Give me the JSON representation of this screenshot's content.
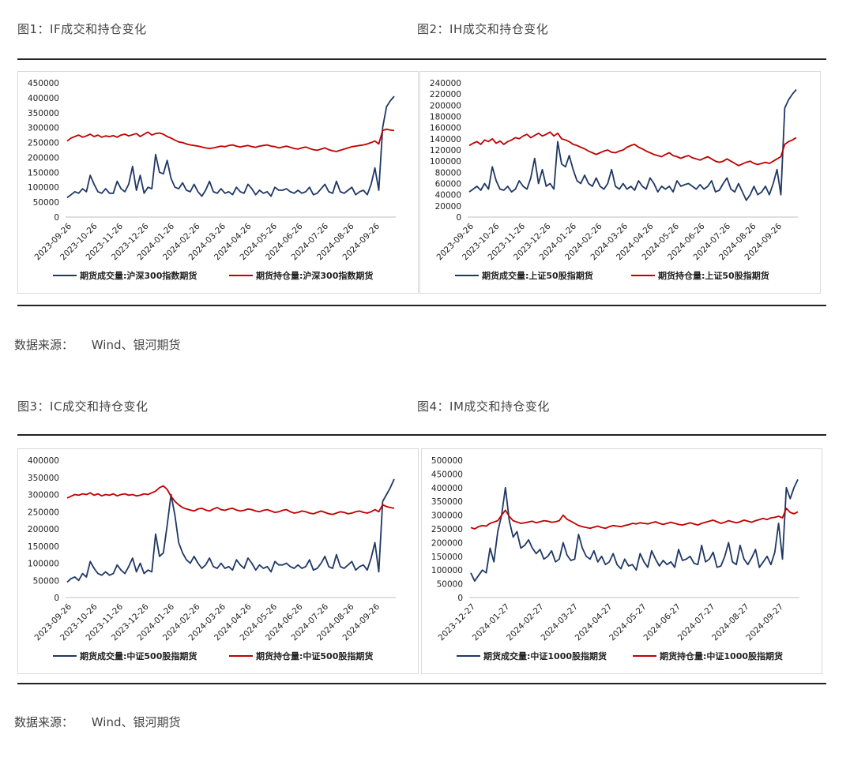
{
  "titles": {
    "fig1": "图1：IF成交和持仓变化",
    "fig2": "图2：IH成交和持仓变化",
    "fig3": "图3：IC成交和持仓变化",
    "fig4": "图4：IM成交和持仓变化"
  },
  "source": {
    "label": "数据来源：",
    "value": "Wind、银河期货"
  },
  "colors": {
    "volume": "#1f3864",
    "oi": "#c00000"
  },
  "chart_data": [
    {
      "id": "fig1",
      "type": "line",
      "title": "",
      "y_ticks": [
        0,
        50000,
        100000,
        150000,
        200000,
        250000,
        300000,
        350000,
        400000,
        450000
      ],
      "ylim": [
        0,
        450000
      ],
      "x_ticks": [
        "2023-09-26",
        "2023-10-26",
        "2023-11-26",
        "2023-12-26",
        "2024-01-26",
        "2024-02-26",
        "2024-03-26",
        "2024-04-26",
        "2024-05-26",
        "2024-06-26",
        "2024-07-26",
        "2024-08-26",
        "2024-09-26"
      ],
      "series": [
        {
          "name": "期货成交量:沪深300指数期货",
          "color": "#1f3864",
          "values": [
            65000,
            75000,
            85000,
            80000,
            95000,
            85000,
            140000,
            110000,
            85000,
            80000,
            95000,
            80000,
            80000,
            120000,
            95000,
            85000,
            110000,
            170000,
            90000,
            140000,
            80000,
            100000,
            95000,
            210000,
            150000,
            145000,
            190000,
            130000,
            100000,
            95000,
            115000,
            90000,
            85000,
            110000,
            85000,
            70000,
            90000,
            120000,
            85000,
            80000,
            95000,
            80000,
            85000,
            75000,
            100000,
            85000,
            80000,
            110000,
            95000,
            75000,
            90000,
            80000,
            85000,
            70000,
            100000,
            90000,
            90000,
            95000,
            85000,
            80000,
            90000,
            80000,
            85000,
            100000,
            75000,
            80000,
            95000,
            110000,
            85000,
            80000,
            120000,
            85000,
            80000,
            90000,
            100000,
            75000,
            85000,
            90000,
            75000,
            110000,
            165000,
            90000,
            300000,
            370000,
            390000,
            405000
          ]
        },
        {
          "name": "期货持仓量:沪深300指数期货",
          "color": "#c00000",
          "values": [
            255000,
            265000,
            270000,
            275000,
            268000,
            272000,
            278000,
            270000,
            275000,
            268000,
            272000,
            270000,
            273000,
            268000,
            275000,
            278000,
            272000,
            276000,
            280000,
            270000,
            278000,
            285000,
            275000,
            280000,
            282000,
            278000,
            270000,
            265000,
            258000,
            252000,
            250000,
            245000,
            242000,
            240000,
            238000,
            235000,
            232000,
            230000,
            232000,
            235000,
            238000,
            236000,
            240000,
            242000,
            238000,
            235000,
            238000,
            240000,
            236000,
            234000,
            238000,
            240000,
            242000,
            238000,
            236000,
            232000,
            235000,
            238000,
            234000,
            230000,
            228000,
            232000,
            235000,
            230000,
            226000,
            224000,
            228000,
            232000,
            226000,
            222000,
            220000,
            224000,
            228000,
            232000,
            236000,
            238000,
            240000,
            242000,
            245000,
            250000,
            255000,
            245000,
            290000,
            295000,
            292000,
            290000
          ]
        }
      ]
    },
    {
      "id": "fig2",
      "type": "line",
      "title": "",
      "y_ticks": [
        0,
        20000,
        40000,
        60000,
        80000,
        100000,
        120000,
        140000,
        160000,
        180000,
        200000,
        220000,
        240000
      ],
      "ylim": [
        0,
        240000
      ],
      "x_ticks": [
        "2023-09-26",
        "2023-10-26",
        "2023-11-26",
        "2023-12-26",
        "2024-01-26",
        "2024-02-26",
        "2024-03-26",
        "2024-04-26",
        "2024-05-26",
        "2024-06-26",
        "2024-07-26",
        "2024-08-26",
        "2024-09-26"
      ],
      "series": [
        {
          "name": "期货成交量:上证50股指期货",
          "color": "#1f3864",
          "values": [
            45000,
            50000,
            55000,
            48000,
            60000,
            50000,
            90000,
            65000,
            50000,
            48000,
            55000,
            45000,
            50000,
            65000,
            55000,
            50000,
            70000,
            105000,
            60000,
            85000,
            55000,
            60000,
            50000,
            135000,
            95000,
            90000,
            110000,
            85000,
            65000,
            60000,
            75000,
            60000,
            55000,
            70000,
            55000,
            50000,
            60000,
            85000,
            55000,
            50000,
            60000,
            50000,
            55000,
            48000,
            65000,
            55000,
            50000,
            70000,
            60000,
            45000,
            55000,
            50000,
            55000,
            45000,
            65000,
            55000,
            58000,
            60000,
            55000,
            50000,
            58000,
            50000,
            55000,
            65000,
            45000,
            48000,
            60000,
            70000,
            50000,
            45000,
            60000,
            45000,
            30000,
            40000,
            55000,
            40000,
            45000,
            55000,
            40000,
            60000,
            85000,
            40000,
            195000,
            210000,
            220000,
            228000
          ]
        },
        {
          "name": "期货持仓量:上证50股指期货",
          "color": "#c00000",
          "values": [
            128000,
            132000,
            135000,
            130000,
            138000,
            135000,
            140000,
            132000,
            136000,
            130000,
            135000,
            138000,
            142000,
            140000,
            145000,
            148000,
            142000,
            146000,
            150000,
            145000,
            148000,
            152000,
            145000,
            150000,
            140000,
            138000,
            135000,
            130000,
            128000,
            125000,
            122000,
            118000,
            115000,
            112000,
            115000,
            118000,
            120000,
            116000,
            115000,
            118000,
            120000,
            125000,
            128000,
            130000,
            125000,
            122000,
            118000,
            115000,
            112000,
            110000,
            108000,
            112000,
            115000,
            110000,
            108000,
            105000,
            108000,
            110000,
            106000,
            104000,
            102000,
            105000,
            108000,
            104000,
            100000,
            98000,
            100000,
            104000,
            100000,
            96000,
            92000,
            95000,
            98000,
            100000,
            96000,
            94000,
            96000,
            98000,
            96000,
            100000,
            104000,
            108000,
            130000,
            135000,
            138000,
            142000
          ]
        }
      ]
    },
    {
      "id": "fig3",
      "type": "line",
      "title": "",
      "y_ticks": [
        0,
        50000,
        100000,
        150000,
        200000,
        250000,
        300000,
        350000,
        400000
      ],
      "ylim": [
        0,
        400000
      ],
      "x_ticks": [
        "2023-09-26",
        "2023-10-26",
        "2023-11-26",
        "2023-12-26",
        "2024-01-26",
        "2024-02-26",
        "2024-03-26",
        "2024-04-26",
        "2024-05-26",
        "2024-06-26",
        "2024-07-26",
        "2024-08-26",
        "2024-09-26"
      ],
      "series": [
        {
          "name": "期货成交量:中证500股指期货",
          "color": "#1f3864",
          "values": [
            45000,
            55000,
            60000,
            50000,
            70000,
            60000,
            105000,
            85000,
            70000,
            65000,
            75000,
            65000,
            70000,
            95000,
            80000,
            70000,
            90000,
            115000,
            75000,
            100000,
            70000,
            80000,
            75000,
            185000,
            120000,
            130000,
            210000,
            300000,
            240000,
            160000,
            130000,
            110000,
            100000,
            120000,
            100000,
            85000,
            95000,
            115000,
            90000,
            85000,
            100000,
            85000,
            90000,
            80000,
            110000,
            95000,
            85000,
            115000,
            100000,
            80000,
            95000,
            85000,
            90000,
            75000,
            105000,
            95000,
            95000,
            100000,
            90000,
            85000,
            95000,
            85000,
            90000,
            110000,
            80000,
            85000,
            100000,
            120000,
            90000,
            85000,
            125000,
            90000,
            85000,
            95000,
            105000,
            80000,
            90000,
            95000,
            80000,
            115000,
            160000,
            75000,
            280000,
            300000,
            320000,
            345000
          ]
        },
        {
          "name": "期货持仓量:中证500股指期货",
          "color": "#c00000",
          "values": [
            290000,
            295000,
            300000,
            298000,
            302000,
            300000,
            305000,
            298000,
            302000,
            296000,
            300000,
            298000,
            302000,
            296000,
            300000,
            302000,
            298000,
            300000,
            296000,
            298000,
            302000,
            300000,
            305000,
            310000,
            320000,
            325000,
            315000,
            295000,
            280000,
            270000,
            262000,
            258000,
            255000,
            252000,
            258000,
            260000,
            255000,
            252000,
            258000,
            262000,
            256000,
            254000,
            258000,
            260000,
            255000,
            252000,
            254000,
            258000,
            256000,
            252000,
            250000,
            254000,
            256000,
            252000,
            248000,
            250000,
            254000,
            256000,
            250000,
            246000,
            248000,
            252000,
            250000,
            246000,
            244000,
            248000,
            252000,
            248000,
            244000,
            242000,
            246000,
            250000,
            248000,
            244000,
            246000,
            250000,
            252000,
            248000,
            246000,
            250000,
            256000,
            250000,
            270000,
            265000,
            262000,
            260000
          ]
        }
      ]
    },
    {
      "id": "fig4",
      "type": "line",
      "title": "",
      "y_ticks": [
        0,
        50000,
        100000,
        150000,
        200000,
        250000,
        300000,
        350000,
        400000,
        450000,
        500000
      ],
      "ylim": [
        0,
        500000
      ],
      "x_ticks": [
        "2023-12-27",
        "2024-01-27",
        "2024-02-27",
        "2024-03-27",
        "2024-04-27",
        "2024-05-27",
        "2024-06-27",
        "2024-07-27",
        "2024-08-27",
        "2024-09-27"
      ],
      "series": [
        {
          "name": "期货成交量:中证1000股指期货",
          "color": "#1f3864",
          "values": [
            90000,
            60000,
            80000,
            100000,
            90000,
            180000,
            130000,
            240000,
            300000,
            400000,
            280000,
            220000,
            240000,
            180000,
            190000,
            210000,
            180000,
            160000,
            175000,
            140000,
            150000,
            170000,
            130000,
            140000,
            200000,
            155000,
            135000,
            140000,
            230000,
            180000,
            150000,
            140000,
            170000,
            130000,
            150000,
            120000,
            130000,
            160000,
            120000,
            105000,
            140000,
            115000,
            120000,
            100000,
            160000,
            130000,
            110000,
            170000,
            140000,
            115000,
            135000,
            120000,
            130000,
            110000,
            175000,
            135000,
            140000,
            150000,
            125000,
            120000,
            190000,
            130000,
            140000,
            165000,
            110000,
            115000,
            150000,
            200000,
            130000,
            120000,
            190000,
            140000,
            120000,
            145000,
            175000,
            110000,
            130000,
            150000,
            120000,
            165000,
            270000,
            140000,
            400000,
            360000,
            400000,
            430000
          ]
        },
        {
          "name": "期货持仓量:中证1000股指期货",
          "color": "#c00000",
          "values": [
            255000,
            250000,
            258000,
            262000,
            260000,
            270000,
            275000,
            280000,
            300000,
            318000,
            295000,
            280000,
            275000,
            270000,
            272000,
            275000,
            278000,
            272000,
            276000,
            280000,
            278000,
            274000,
            276000,
            280000,
            300000,
            285000,
            278000,
            270000,
            262000,
            258000,
            255000,
            252000,
            256000,
            260000,
            255000,
            252000,
            258000,
            262000,
            260000,
            258000,
            262000,
            265000,
            270000,
            268000,
            272000,
            270000,
            268000,
            272000,
            276000,
            270000,
            266000,
            270000,
            274000,
            270000,
            266000,
            264000,
            268000,
            272000,
            268000,
            264000,
            270000,
            274000,
            278000,
            282000,
            276000,
            270000,
            274000,
            280000,
            276000,
            272000,
            276000,
            282000,
            278000,
            274000,
            280000,
            284000,
            288000,
            284000,
            290000,
            292000,
            296000,
            290000,
            325000,
            310000,
            305000,
            312000
          ]
        }
      ]
    }
  ]
}
